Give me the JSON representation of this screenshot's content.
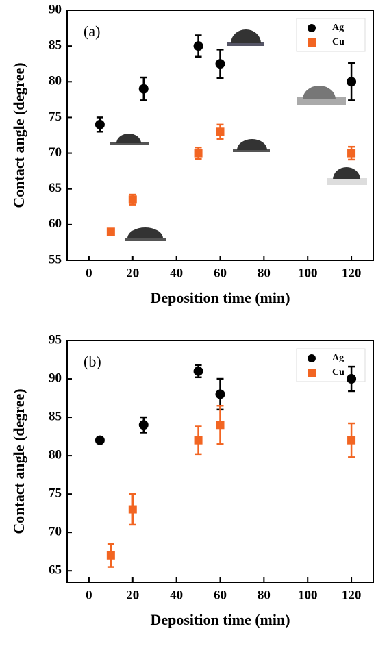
{
  "chart_data": [
    {
      "type": "scatter",
      "annotation": "(a)",
      "x_label": "Deposition time (min)",
      "y_label": "Contact angle (degree)",
      "xlim": [
        -10,
        130
      ],
      "xticks": [
        0,
        20,
        40,
        60,
        80,
        100,
        120
      ],
      "ylim": [
        55,
        90
      ],
      "yticks": [
        55,
        60,
        65,
        70,
        75,
        80,
        85,
        90
      ],
      "series": [
        {
          "name": "Ag",
          "color": "#000000",
          "marker": "circle",
          "x": [
            5,
            25,
            50,
            60,
            120
          ],
          "values": [
            74,
            79,
            85,
            82.5,
            80
          ],
          "errors": [
            1,
            1.6,
            1.5,
            2,
            2.6
          ]
        },
        {
          "name": "Cu",
          "color": "#f26522",
          "marker": "square",
          "x": [
            10,
            20,
            50,
            60,
            120
          ],
          "values": [
            59,
            63.5,
            70,
            73,
            70
          ],
          "errors": [
            0.4,
            0.7,
            0.8,
            1,
            0.9
          ]
        }
      ]
    },
    {
      "type": "scatter",
      "annotation": "(b)",
      "x_label": "Deposition time (min)",
      "y_label": "Contact angle (degree)",
      "xlim": [
        -10,
        130
      ],
      "xticks": [
        0,
        20,
        40,
        60,
        80,
        100,
        120
      ],
      "ylim": [
        63.5,
        95
      ],
      "yticks": [
        65,
        70,
        75,
        80,
        85,
        90,
        95
      ],
      "series": [
        {
          "name": "Ag",
          "color": "#000000",
          "marker": "circle",
          "x": [
            5,
            25,
            50,
            60,
            120
          ],
          "values": [
            82,
            84,
            91,
            88,
            90
          ],
          "errors": [
            0.4,
            1,
            0.8,
            2,
            1.6
          ]
        },
        {
          "name": "Cu",
          "color": "#f26522",
          "marker": "square",
          "x": [
            10,
            20,
            50,
            60,
            120
          ],
          "values": [
            67,
            73,
            82,
            84,
            82
          ],
          "errors": [
            1.5,
            2,
            1.8,
            2.5,
            2.2
          ]
        }
      ]
    }
  ]
}
